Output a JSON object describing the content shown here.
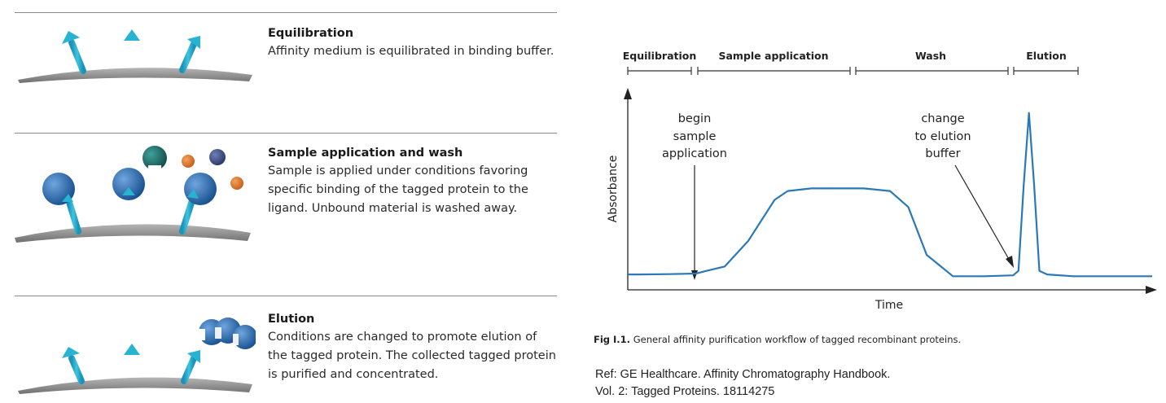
{
  "steps": [
    {
      "title": "Equilibration",
      "lines": [
        "Affinity medium is equilibrated in binding buffer."
      ]
    },
    {
      "title": "Sample application and wash",
      "lines": [
        "Sample is applied under conditions favoring",
        "specific binding of the tagged protein to the",
        "ligand. Unbound material is washed away."
      ]
    },
    {
      "title": "Elution",
      "lines": [
        "Conditions are changed to promote elution of",
        "the tagged protein. The collected tagged protein",
        "is purified and concentrated."
      ]
    }
  ],
  "colors": {
    "ligand": "#29b3d3",
    "ligand_dark": "#0f7fa0",
    "protein": "#1f5fa6",
    "teal_ball": "#1e6f6a",
    "orange_ball": "#e07a2a",
    "navy_ball": "#3d4f8f",
    "matrix": "#8e8e8e",
    "curve": "#2a78b8"
  },
  "chart_data": {
    "type": "line",
    "xlabel": "Time",
    "ylabel": "Absorbance",
    "phases": [
      "Equilibration",
      "Sample application",
      "Wash",
      "Elution"
    ],
    "annotations": [
      {
        "lines": [
          "begin",
          "sample",
          "application"
        ]
      },
      {
        "lines": [
          "change",
          "to elution",
          "buffer"
        ]
      }
    ],
    "series": [
      {
        "x": [
          0,
          0.02,
          0.08,
          0.13,
          0.15,
          0.185,
          0.23,
          0.28,
          0.305,
          0.35,
          0.45,
          0.5,
          0.535,
          0.57,
          0.62,
          0.68,
          0.735,
          0.745,
          0.755,
          0.765,
          0.775,
          0.785,
          0.8,
          0.85,
          1.0
        ],
        "values": [
          0.05,
          0.05,
          0.052,
          0.055,
          0.07,
          0.095,
          0.24,
          0.47,
          0.52,
          0.535,
          0.535,
          0.52,
          0.43,
          0.16,
          0.04,
          0.04,
          0.045,
          0.07,
          0.55,
          0.96,
          0.55,
          0.07,
          0.05,
          0.04,
          0.04
        ]
      }
    ]
  },
  "caption": {
    "label": "Fig I.1.",
    "text": " General affinity purification workflow of tagged recombinant  proteins."
  },
  "reference": {
    "line1": "Ref: GE Healthcare. Affinity Chromatography Handbook.",
    "line2": "Vol. 2: Tagged Proteins. 18114275"
  }
}
